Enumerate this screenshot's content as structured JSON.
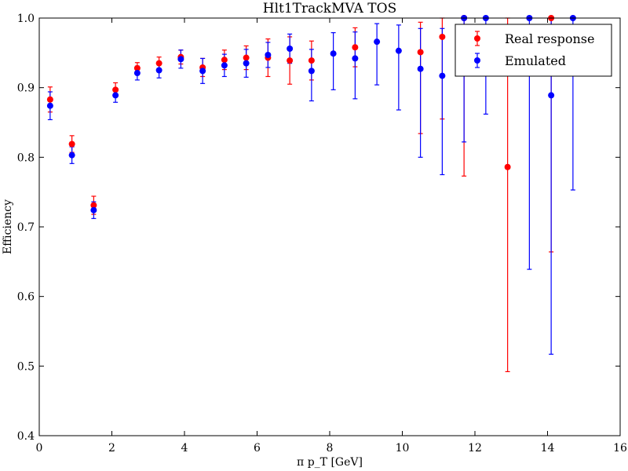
{
  "chart_data": {
    "type": "scatter",
    "title": "Hlt1TrackMVA TOS",
    "xlabel": "π p_T [GeV]",
    "ylabel": "Efficiency",
    "xlim": [
      0,
      16
    ],
    "ylim": [
      0.4,
      1.0
    ],
    "xticks": [
      "0",
      "2",
      "4",
      "6",
      "8",
      "10",
      "12",
      "14",
      "16"
    ],
    "yticks": [
      "0.4",
      "0.5",
      "0.6",
      "0.7",
      "0.8",
      "0.9",
      "1.0"
    ],
    "legend_position": "top-right",
    "series": [
      {
        "name": "Real response",
        "color": "#ff0000",
        "points": [
          {
            "x": 0.3,
            "y": 0.883,
            "err": 0.018
          },
          {
            "x": 0.9,
            "y": 0.819,
            "err": 0.012
          },
          {
            "x": 1.5,
            "y": 0.731,
            "err": 0.013
          },
          {
            "x": 2.1,
            "y": 0.897,
            "err": 0.01
          },
          {
            "x": 2.7,
            "y": 0.928,
            "err": 0.008
          },
          {
            "x": 3.3,
            "y": 0.935,
            "err": 0.009
          },
          {
            "x": 3.9,
            "y": 0.944,
            "err": 0.01
          },
          {
            "x": 4.5,
            "y": 0.929,
            "err": 0.013
          },
          {
            "x": 5.1,
            "y": 0.94,
            "err": 0.014
          },
          {
            "x": 5.7,
            "y": 0.943,
            "err": 0.017
          },
          {
            "x": 6.3,
            "y": 0.943,
            "err": 0.027
          },
          {
            "x": 6.9,
            "y": 0.939,
            "err": 0.034
          },
          {
            "x": 7.5,
            "y": 0.939,
            "err": 0.028
          },
          {
            "x": 8.7,
            "y": 0.958,
            "err": 0.028
          },
          {
            "x": 10.5,
            "y": 0.951,
            "err": 0.043,
            "err_low": 0.117
          },
          {
            "x": 11.1,
            "y": 0.973,
            "err": 0.027,
            "err_low": 0.118
          },
          {
            "x": 11.7,
            "y": 1.0,
            "err": 0.0,
            "err_low": 0.227
          },
          {
            "x": 12.9,
            "y": 0.786,
            "err": 0.214,
            "err_low": 0.294
          },
          {
            "x": 14.1,
            "y": 1.0,
            "err": 0.0,
            "err_low": 0.336
          }
        ]
      },
      {
        "name": "Emulated",
        "color": "#0000ff",
        "points": [
          {
            "x": 0.3,
            "y": 0.874,
            "err": 0.02
          },
          {
            "x": 0.9,
            "y": 0.803,
            "err": 0.012
          },
          {
            "x": 1.5,
            "y": 0.724,
            "err": 0.012
          },
          {
            "x": 2.1,
            "y": 0.889,
            "err": 0.01
          },
          {
            "x": 2.7,
            "y": 0.921,
            "err": 0.01
          },
          {
            "x": 3.3,
            "y": 0.925,
            "err": 0.011
          },
          {
            "x": 3.9,
            "y": 0.941,
            "err": 0.013
          },
          {
            "x": 4.5,
            "y": 0.924,
            "err": 0.018
          },
          {
            "x": 5.1,
            "y": 0.932,
            "err": 0.016
          },
          {
            "x": 5.7,
            "y": 0.935,
            "err": 0.02
          },
          {
            "x": 6.3,
            "y": 0.947,
            "err": 0.018
          },
          {
            "x": 6.9,
            "y": 0.956,
            "err": 0.021
          },
          {
            "x": 7.5,
            "y": 0.924,
            "err": 0.031,
            "err_low": 0.043
          },
          {
            "x": 8.1,
            "y": 0.949,
            "err": 0.03,
            "err_low": 0.052
          },
          {
            "x": 8.7,
            "y": 0.942,
            "err": 0.038,
            "err_low": 0.058
          },
          {
            "x": 9.3,
            "y": 0.966,
            "err": 0.026,
            "err_low": 0.062
          },
          {
            "x": 9.9,
            "y": 0.953,
            "err": 0.037,
            "err_low": 0.085
          },
          {
            "x": 10.5,
            "y": 0.927,
            "err": 0.058,
            "err_low": 0.127
          },
          {
            "x": 11.1,
            "y": 0.917,
            "err": 0.068,
            "err_low": 0.142
          },
          {
            "x": 11.7,
            "y": 1.0,
            "err": 0.0,
            "err_low": 0.178
          },
          {
            "x": 12.3,
            "y": 1.0,
            "err": 0.0,
            "err_low": 0.138
          },
          {
            "x": 13.5,
            "y": 1.0,
            "err": 0.0,
            "err_low": 0.361
          },
          {
            "x": 14.1,
            "y": 0.889,
            "err": 0.111,
            "err_low": 0.372
          },
          {
            "x": 14.7,
            "y": 1.0,
            "err": 0.0,
            "err_low": 0.247
          }
        ]
      }
    ]
  }
}
